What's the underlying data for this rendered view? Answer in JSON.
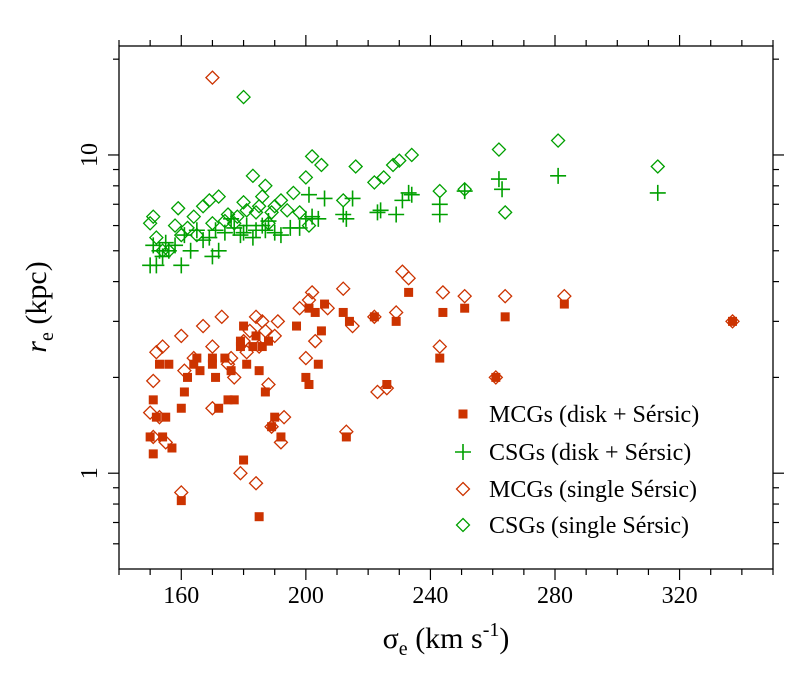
{
  "chart_data": {
    "type": "scatter",
    "xlabel": "σe (km s-1)",
    "xlabel_parts": {
      "main": "σ",
      "sub": "e",
      "unit_main": " (km s",
      "unit_sup": "-1",
      "unit_close": ")"
    },
    "ylabel": "re (kpc)",
    "ylabel_parts": {
      "main": "r",
      "sub": "e",
      "unit": " (kpc)"
    },
    "x_axis": {
      "range": [
        140,
        350
      ],
      "scale": "linear",
      "major_ticks": [
        160,
        200,
        240,
        280,
        320
      ],
      "tick_labels": [
        "160",
        "200",
        "240",
        "280",
        "320"
      ],
      "minor_step": 10
    },
    "y_axis": {
      "range": [
        0.5,
        22
      ],
      "scale": "log",
      "major_ticks": [
        1,
        10
      ],
      "tick_labels": [
        "1",
        "10"
      ],
      "minor_ticks": [
        0.6,
        0.7,
        0.8,
        0.9,
        2,
        3,
        4,
        5,
        6,
        7,
        8,
        9,
        20
      ]
    },
    "legend_position": "bottom-right",
    "series": [
      {
        "name": "MCGs (disk + Sérsic)",
        "marker": "filled-square",
        "color": "#cc3300",
        "points": [
          [
            150,
            1.3
          ],
          [
            151,
            1.15
          ],
          [
            151,
            1.7
          ],
          [
            152,
            1.5
          ],
          [
            153,
            2.2
          ],
          [
            154,
            1.3
          ],
          [
            155,
            1.5
          ],
          [
            157,
            1.2
          ],
          [
            156,
            2.2
          ],
          [
            160,
            0.82
          ],
          [
            160,
            1.6
          ],
          [
            161,
            1.8
          ],
          [
            162,
            2.0
          ],
          [
            164,
            2.2
          ],
          [
            165,
            2.3
          ],
          [
            166,
            2.1
          ],
          [
            170,
            2.3
          ],
          [
            170,
            2.2
          ],
          [
            171,
            2.0
          ],
          [
            172,
            1.6
          ],
          [
            174,
            2.3
          ],
          [
            175,
            1.7
          ],
          [
            176,
            2.1
          ],
          [
            177,
            1.7
          ],
          [
            179,
            2.5
          ],
          [
            179,
            2.6
          ],
          [
            180,
            1.1
          ],
          [
            180,
            2.9
          ],
          [
            181,
            2.2
          ],
          [
            183,
            2.5
          ],
          [
            184,
            2.7
          ],
          [
            185,
            0.73
          ],
          [
            185,
            2.1
          ],
          [
            186,
            2.5
          ],
          [
            187,
            1.8
          ],
          [
            188,
            2.6
          ],
          [
            189,
            1.4
          ],
          [
            190,
            1.5
          ],
          [
            192,
            1.3
          ],
          [
            197,
            2.9
          ],
          [
            200,
            2.0
          ],
          [
            201,
            3.3
          ],
          [
            201,
            1.9
          ],
          [
            203,
            3.2
          ],
          [
            204,
            2.2
          ],
          [
            205,
            2.8
          ],
          [
            206,
            3.4
          ],
          [
            212,
            3.2
          ],
          [
            213,
            1.3
          ],
          [
            214,
            3.0
          ],
          [
            222,
            3.1
          ],
          [
            226,
            1.9
          ],
          [
            229,
            3.0
          ],
          [
            233,
            3.7
          ],
          [
            243,
            2.3
          ],
          [
            244,
            3.2
          ],
          [
            251,
            3.3
          ],
          [
            261,
            2.0
          ],
          [
            264,
            3.1
          ],
          [
            283,
            3.4
          ],
          [
            337,
            3.0
          ]
        ]
      },
      {
        "name": "CSGs (disk + Sérsic)",
        "marker": "plus",
        "color": "#00a000",
        "points": [
          [
            150,
            4.5
          ],
          [
            151,
            5.2
          ],
          [
            152,
            4.5
          ],
          [
            153,
            5.0
          ],
          [
            154,
            4.8
          ],
          [
            155,
            5.3
          ],
          [
            156,
            5.0
          ],
          [
            158,
            5.2
          ],
          [
            160,
            4.5
          ],
          [
            161,
            5.6
          ],
          [
            163,
            5.0
          ],
          [
            165,
            5.8
          ],
          [
            167,
            5.4
          ],
          [
            169,
            5.5
          ],
          [
            170,
            4.8
          ],
          [
            171,
            5.8
          ],
          [
            172,
            5.0
          ],
          [
            174,
            5.7
          ],
          [
            176,
            6.3
          ],
          [
            177,
            5.9
          ],
          [
            179,
            5.6
          ],
          [
            180,
            5.7
          ],
          [
            181,
            6.0
          ],
          [
            183,
            5.5
          ],
          [
            184,
            5.8
          ],
          [
            186,
            6.0
          ],
          [
            187,
            5.8
          ],
          [
            188,
            6.2
          ],
          [
            190,
            5.7
          ],
          [
            192,
            5.6
          ],
          [
            195,
            5.9
          ],
          [
            198,
            5.9
          ],
          [
            200,
            6.3
          ],
          [
            201,
            7.5
          ],
          [
            202,
            6.4
          ],
          [
            204,
            6.3
          ],
          [
            206,
            7.3
          ],
          [
            212,
            6.5
          ],
          [
            213,
            6.3
          ],
          [
            215,
            7.3
          ],
          [
            223,
            6.6
          ],
          [
            224,
            6.7
          ],
          [
            229,
            6.5
          ],
          [
            231,
            7.2
          ],
          [
            233,
            7.6
          ],
          [
            234,
            7.5
          ],
          [
            243,
            7.0
          ],
          [
            243,
            6.5
          ],
          [
            251,
            7.7
          ],
          [
            262,
            8.4
          ],
          [
            263,
            7.8
          ],
          [
            281,
            8.6
          ],
          [
            313,
            7.6
          ]
        ]
      },
      {
        "name": "MCGs (single Sérsic)",
        "marker": "open-diamond",
        "color": "#cc3300",
        "points": [
          [
            150,
            1.55
          ],
          [
            151,
            1.3
          ],
          [
            151,
            1.95
          ],
          [
            152,
            2.4
          ],
          [
            153,
            1.5
          ],
          [
            154,
            2.5
          ],
          [
            155,
            1.25
          ],
          [
            160,
            0.87
          ],
          [
            160,
            2.7
          ],
          [
            161,
            2.1
          ],
          [
            164,
            2.3
          ],
          [
            167,
            2.9
          ],
          [
            170,
            17.5
          ],
          [
            170,
            2.5
          ],
          [
            170,
            1.6
          ],
          [
            173,
            3.1
          ],
          [
            175,
            2.2
          ],
          [
            176,
            2.3
          ],
          [
            177,
            2.0
          ],
          [
            179,
            1.0
          ],
          [
            180,
            2.6
          ],
          [
            181,
            2.4
          ],
          [
            182,
            2.8
          ],
          [
            184,
            3.1
          ],
          [
            184,
            0.93
          ],
          [
            185,
            2.5
          ],
          [
            186,
            3.0
          ],
          [
            187,
            2.8
          ],
          [
            188,
            1.9
          ],
          [
            189,
            1.4
          ],
          [
            190,
            2.7
          ],
          [
            191,
            3.0
          ],
          [
            192,
            1.25
          ],
          [
            193,
            1.5
          ],
          [
            198,
            3.3
          ],
          [
            200,
            2.3
          ],
          [
            201,
            3.5
          ],
          [
            202,
            3.7
          ],
          [
            203,
            2.6
          ],
          [
            207,
            3.3
          ],
          [
            212,
            3.8
          ],
          [
            213,
            1.35
          ],
          [
            215,
            2.9
          ],
          [
            222,
            3.1
          ],
          [
            223,
            1.8
          ],
          [
            226,
            1.85
          ],
          [
            229,
            3.2
          ],
          [
            231,
            4.3
          ],
          [
            233,
            4.1
          ],
          [
            243,
            2.5
          ],
          [
            244,
            3.7
          ],
          [
            251,
            3.6
          ],
          [
            261,
            2.0
          ],
          [
            264,
            3.6
          ],
          [
            283,
            3.6
          ],
          [
            337,
            3.0
          ]
        ]
      },
      {
        "name": "CSGs (single Sérsic)",
        "marker": "open-diamond",
        "color": "#00a000",
        "points": [
          [
            150,
            6.1
          ],
          [
            151,
            6.4
          ],
          [
            152,
            5.5
          ],
          [
            154,
            5.0
          ],
          [
            156,
            5.0
          ],
          [
            158,
            6.0
          ],
          [
            159,
            6.8
          ],
          [
            160,
            5.6
          ],
          [
            162,
            5.9
          ],
          [
            164,
            6.4
          ],
          [
            165,
            5.6
          ],
          [
            167,
            6.9
          ],
          [
            169,
            7.2
          ],
          [
            170,
            6.1
          ],
          [
            172,
            7.4
          ],
          [
            174,
            6.2
          ],
          [
            175,
            6.5
          ],
          [
            177,
            6.1
          ],
          [
            178,
            6.4
          ],
          [
            180,
            15.2
          ],
          [
            180,
            7.1
          ],
          [
            181,
            6.7
          ],
          [
            183,
            8.6
          ],
          [
            184,
            6.6
          ],
          [
            185,
            6.9
          ],
          [
            186,
            7.4
          ],
          [
            187,
            8.0
          ],
          [
            188,
            6.1
          ],
          [
            189,
            6.6
          ],
          [
            190,
            6.9
          ],
          [
            192,
            7.2
          ],
          [
            194,
            6.7
          ],
          [
            196,
            7.6
          ],
          [
            198,
            6.6
          ],
          [
            200,
            8.5
          ],
          [
            201,
            6.0
          ],
          [
            202,
            9.9
          ],
          [
            205,
            9.3
          ],
          [
            212,
            7.2
          ],
          [
            216,
            9.2
          ],
          [
            222,
            8.2
          ],
          [
            225,
            8.5
          ],
          [
            228,
            9.3
          ],
          [
            230,
            9.6
          ],
          [
            234,
            10.0
          ],
          [
            243,
            7.7
          ],
          [
            251,
            7.8
          ],
          [
            262,
            10.4
          ],
          [
            264,
            6.6
          ],
          [
            281,
            11.1
          ],
          [
            313,
            9.2
          ]
        ]
      }
    ]
  }
}
